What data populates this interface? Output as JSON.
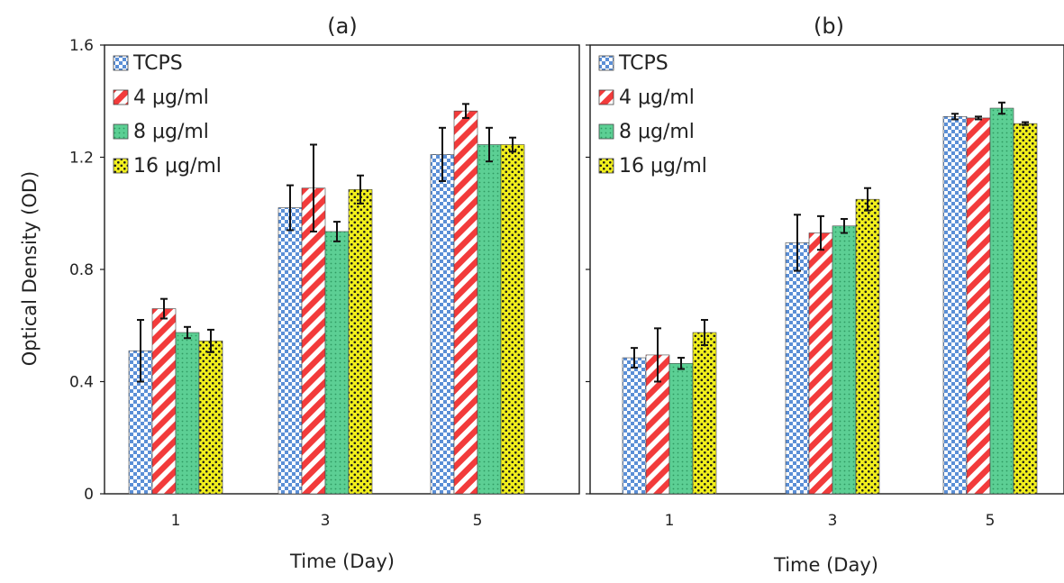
{
  "chart_data": [
    {
      "type": "bar",
      "title": "(a)",
      "xlabel": "Time (Day)",
      "ylabel": "Optical Density (OD)",
      "ylim": [
        0,
        1.6
      ],
      "yticks": [
        "0",
        "0.4",
        "0.8",
        "1.2",
        "1.6"
      ],
      "categories": [
        "1",
        "3",
        "5"
      ],
      "legend": "top-left",
      "series": [
        {
          "name": "TCPS",
          "values": [
            0.51,
            1.02,
            1.21
          ],
          "errors": [
            0.11,
            0.08,
            0.095
          ]
        },
        {
          "name": "4 μg/ml",
          "values": [
            0.66,
            1.09,
            1.365
          ],
          "errors": [
            0.035,
            0.155,
            0.025
          ]
        },
        {
          "name": "8 μg/ml",
          "values": [
            0.575,
            0.935,
            1.245
          ],
          "errors": [
            0.02,
            0.035,
            0.06
          ]
        },
        {
          "name": "16 μg/ml",
          "values": [
            0.545,
            1.085,
            1.245
          ],
          "errors": [
            0.04,
            0.05,
            0.025
          ]
        }
      ]
    },
    {
      "type": "bar",
      "title": "(b)",
      "xlabel": "Time (Day)",
      "ylabel": "",
      "ylim": [
        0,
        1.6
      ],
      "categories": [
        "1",
        "3",
        "5"
      ],
      "legend": "top-left",
      "series": [
        {
          "name": "TCPS",
          "values": [
            0.485,
            0.895,
            1.345
          ],
          "errors": [
            0.035,
            0.1,
            0.01
          ]
        },
        {
          "name": "4 μg/ml",
          "values": [
            0.495,
            0.93,
            1.34
          ],
          "errors": [
            0.095,
            0.06,
            0.005
          ]
        },
        {
          "name": "8 μg/ml",
          "values": [
            0.465,
            0.955,
            1.375
          ],
          "errors": [
            0.02,
            0.025,
            0.02
          ]
        },
        {
          "name": "16 μg/ml",
          "values": [
            0.575,
            1.05,
            1.32
          ],
          "errors": [
            0.045,
            0.04,
            0.005
          ]
        }
      ]
    }
  ],
  "colors": {
    "tcps_fill": "#5b8fd6",
    "tcps_alt": "#ffffff",
    "c4_fill": "#f23b3b",
    "c8_fill": "#5ccf94",
    "c8_dot": "#2f9a62",
    "c16_fill": "#f2f01c",
    "c16_dot": "#1b1b1b",
    "axis": "#1b1b1b"
  }
}
